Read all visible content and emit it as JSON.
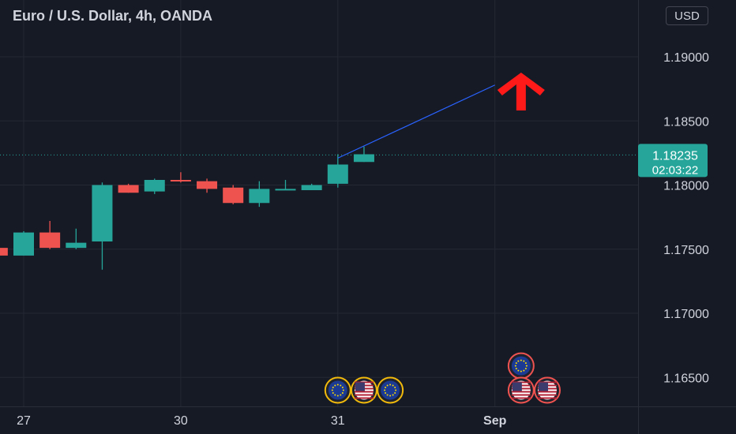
{
  "header": {
    "title": "Euro / U.S. Dollar, 4h, OANDA",
    "currency": "USD"
  },
  "colors": {
    "background": "#161a25",
    "grid": "#242833",
    "up": "#26a69a",
    "down": "#ef5350",
    "trendline": "#2962ff",
    "arrow": "#ff1a1a",
    "axis_text": "#d1d4dc"
  },
  "chart_data": {
    "type": "candlestick",
    "title": "Euro / U.S. Dollar, 4h, OANDA",
    "y_ticks": [
      "1.19000",
      "1.18500",
      "1.18000",
      "1.17500",
      "1.17000",
      "1.16500"
    ],
    "ylim": [
      1.1613,
      1.193
    ],
    "x_ticks": [
      {
        "label": "27",
        "bar": 0.9
      },
      {
        "label": "30",
        "bar": 6.9
      },
      {
        "label": "31",
        "bar": 12.9
      },
      {
        "label": "Sep",
        "bar": 18.9
      }
    ],
    "grid": true,
    "candles": [
      {
        "bar": -0.1,
        "open": 1.1751,
        "high": 1.1751,
        "low": 1.1745,
        "close": 1.1745
      },
      {
        "bar": 0.9,
        "open": 1.1745,
        "high": 1.1764,
        "low": 1.1745,
        "close": 1.1763
      },
      {
        "bar": 1.9,
        "open": 1.1763,
        "high": 1.1772,
        "low": 1.175,
        "close": 1.1751
      },
      {
        "bar": 2.9,
        "open": 1.1751,
        "high": 1.1766,
        "low": 1.175,
        "close": 1.1755
      },
      {
        "bar": 3.9,
        "open": 1.1756,
        "high": 1.1802,
        "low": 1.1734,
        "close": 1.18
      },
      {
        "bar": 4.9,
        "open": 1.18,
        "high": 1.1801,
        "low": 1.1794,
        "close": 1.1794
      },
      {
        "bar": 5.9,
        "open": 1.1795,
        "high": 1.1805,
        "low": 1.1793,
        "close": 1.1804
      },
      {
        "bar": 6.9,
        "open": 1.1804,
        "high": 1.181,
        "low": 1.1802,
        "close": 1.1803
      },
      {
        "bar": 7.9,
        "open": 1.1803,
        "high": 1.1805,
        "low": 1.1794,
        "close": 1.1797
      },
      {
        "bar": 8.9,
        "open": 1.1798,
        "high": 1.18,
        "low": 1.1785,
        "close": 1.1786
      },
      {
        "bar": 9.9,
        "open": 1.1786,
        "high": 1.1803,
        "low": 1.1783,
        "close": 1.1797
      },
      {
        "bar": 10.9,
        "open": 1.1797,
        "high": 1.1804,
        "low": 1.1796,
        "close": 1.1797
      },
      {
        "bar": 11.9,
        "open": 1.1796,
        "high": 1.1801,
        "low": 1.1796,
        "close": 1.18
      },
      {
        "bar": 12.9,
        "open": 1.1801,
        "high": 1.1824,
        "low": 1.1798,
        "close": 1.1816
      },
      {
        "bar": 13.9,
        "open": 1.1818,
        "high": 1.183,
        "low": 1.1818,
        "close": 1.1824
      }
    ],
    "price_line": {
      "price": 1.18235,
      "label": "1.18235",
      "countdown": "02:03:22"
    },
    "trendline": {
      "from": {
        "bar": 12.9,
        "price": 1.1821
      },
      "to": {
        "bar": 18.9,
        "price": 1.1878
      }
    },
    "arrow": {
      "direction": "up",
      "bar": 19.9,
      "price": 1.1876
    },
    "events": [
      {
        "bar": 12.9,
        "price": 1.164,
        "flag": "eu",
        "border": "#f0b90b"
      },
      {
        "bar": 13.9,
        "price": 1.164,
        "flag": "us",
        "border": "#f0b90b"
      },
      {
        "bar": 14.9,
        "price": 1.164,
        "flag": "eu",
        "border": "#f0b90b"
      },
      {
        "bar": 19.9,
        "price": 1.1659,
        "flag": "eu",
        "border": "#ef5350"
      },
      {
        "bar": 19.9,
        "price": 1.164,
        "flag": "us",
        "border": "#ef5350"
      },
      {
        "bar": 20.9,
        "price": 1.164,
        "flag": "us",
        "border": "#ef5350"
      }
    ]
  }
}
